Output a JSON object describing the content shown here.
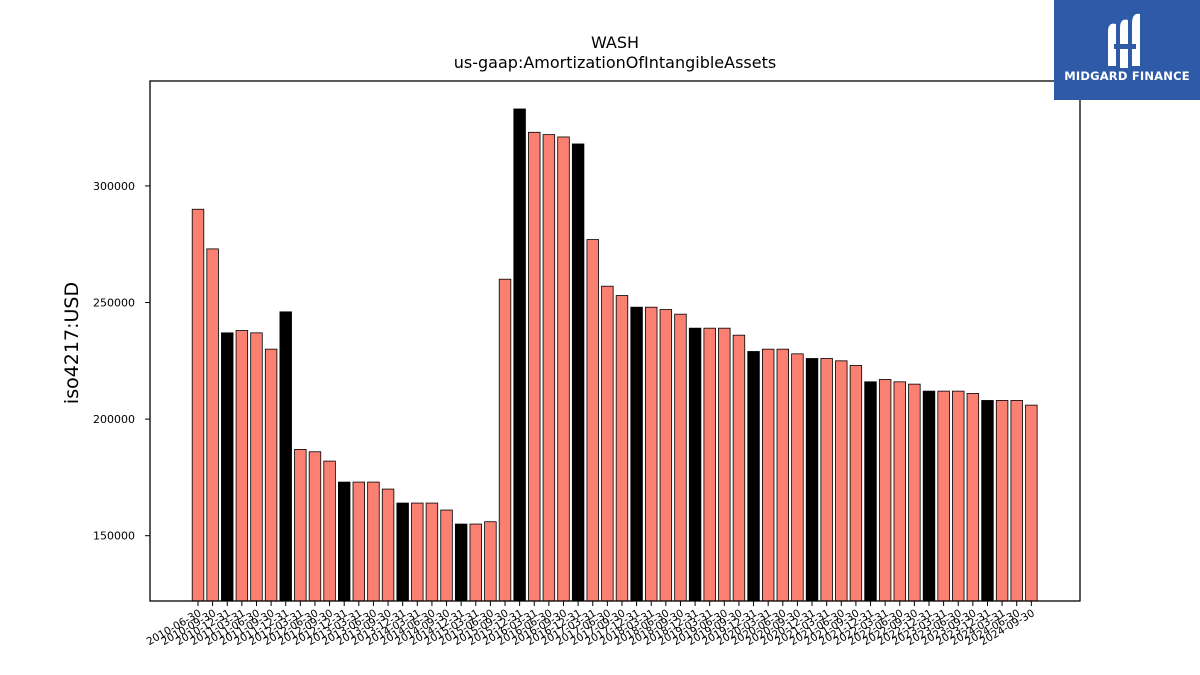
{
  "brand": {
    "logo_text": "MIDGARD FINANCE",
    "logo_icon": "midgard-logo-icon",
    "bg_color": "#2f5aa8"
  },
  "colors": {
    "highlight": "#000000",
    "normal": "#fa8072",
    "edge": "#000000"
  },
  "chart_data": {
    "type": "bar",
    "title": "WASH",
    "subtitle": "us-gaap:AmortizationOfIntangibleAssets",
    "xlabel": "",
    "ylabel": "iso4217:USD",
    "ylim": [
      122000,
      345000
    ],
    "yticks": [
      150000,
      200000,
      250000,
      300000
    ],
    "grid": false,
    "categories": [
      "2010-06-30",
      "2010-09-30",
      "2010-12-31",
      "2011-03-31",
      "2011-06-30",
      "2011-09-30",
      "2011-12-31",
      "2012-03-31",
      "2012-06-30",
      "2012-09-30",
      "2012-12-31",
      "2013-03-31",
      "2013-06-30",
      "2013-09-30",
      "2013-12-31",
      "2014-03-31",
      "2014-06-30",
      "2014-09-30",
      "2014-12-31",
      "2015-03-31",
      "2015-06-30",
      "2015-09-30",
      "2015-12-31",
      "2016-03-31",
      "2016-06-30",
      "2016-09-30",
      "2016-12-31",
      "2017-03-31",
      "2017-06-30",
      "2017-09-30",
      "2017-12-31",
      "2018-03-31",
      "2018-06-30",
      "2018-09-30",
      "2018-12-31",
      "2019-03-31",
      "2019-06-30",
      "2019-09-30",
      "2019-12-31",
      "2020-03-31",
      "2020-06-30",
      "2020-09-30",
      "2020-12-31",
      "2021-03-31",
      "2021-06-30",
      "2021-09-30",
      "2021-12-31",
      "2022-03-31",
      "2022-06-30",
      "2022-09-30",
      "2022-12-31",
      "2023-03-31",
      "2023-06-30",
      "2023-09-30",
      "2023-12-31",
      "2024-03-31",
      "2024-06-30",
      "2024-09-30"
    ],
    "values": [
      290000,
      273000,
      237000,
      238000,
      237000,
      230000,
      246000,
      187000,
      186000,
      182000,
      173000,
      173000,
      173000,
      170000,
      164000,
      164000,
      164000,
      161000,
      155000,
      155000,
      156000,
      260000,
      333000,
      323000,
      322000,
      321000,
      318000,
      277000,
      257000,
      253000,
      248000,
      248000,
      247000,
      245000,
      239000,
      239000,
      239000,
      236000,
      229000,
      230000,
      230000,
      228000,
      226000,
      226000,
      225000,
      223000,
      216000,
      217000,
      216000,
      215000,
      212000,
      212000,
      212000,
      211000,
      208000,
      208000,
      208000,
      206000
    ],
    "highlighted": [
      false,
      false,
      true,
      false,
      false,
      false,
      true,
      false,
      false,
      false,
      true,
      false,
      false,
      false,
      true,
      false,
      false,
      false,
      true,
      false,
      false,
      false,
      true,
      false,
      false,
      false,
      true,
      false,
      false,
      false,
      true,
      false,
      false,
      false,
      true,
      false,
      false,
      false,
      true,
      false,
      false,
      false,
      true,
      false,
      false,
      false,
      true,
      false,
      false,
      false,
      true,
      false,
      false,
      false,
      true,
      false,
      false,
      false
    ]
  }
}
